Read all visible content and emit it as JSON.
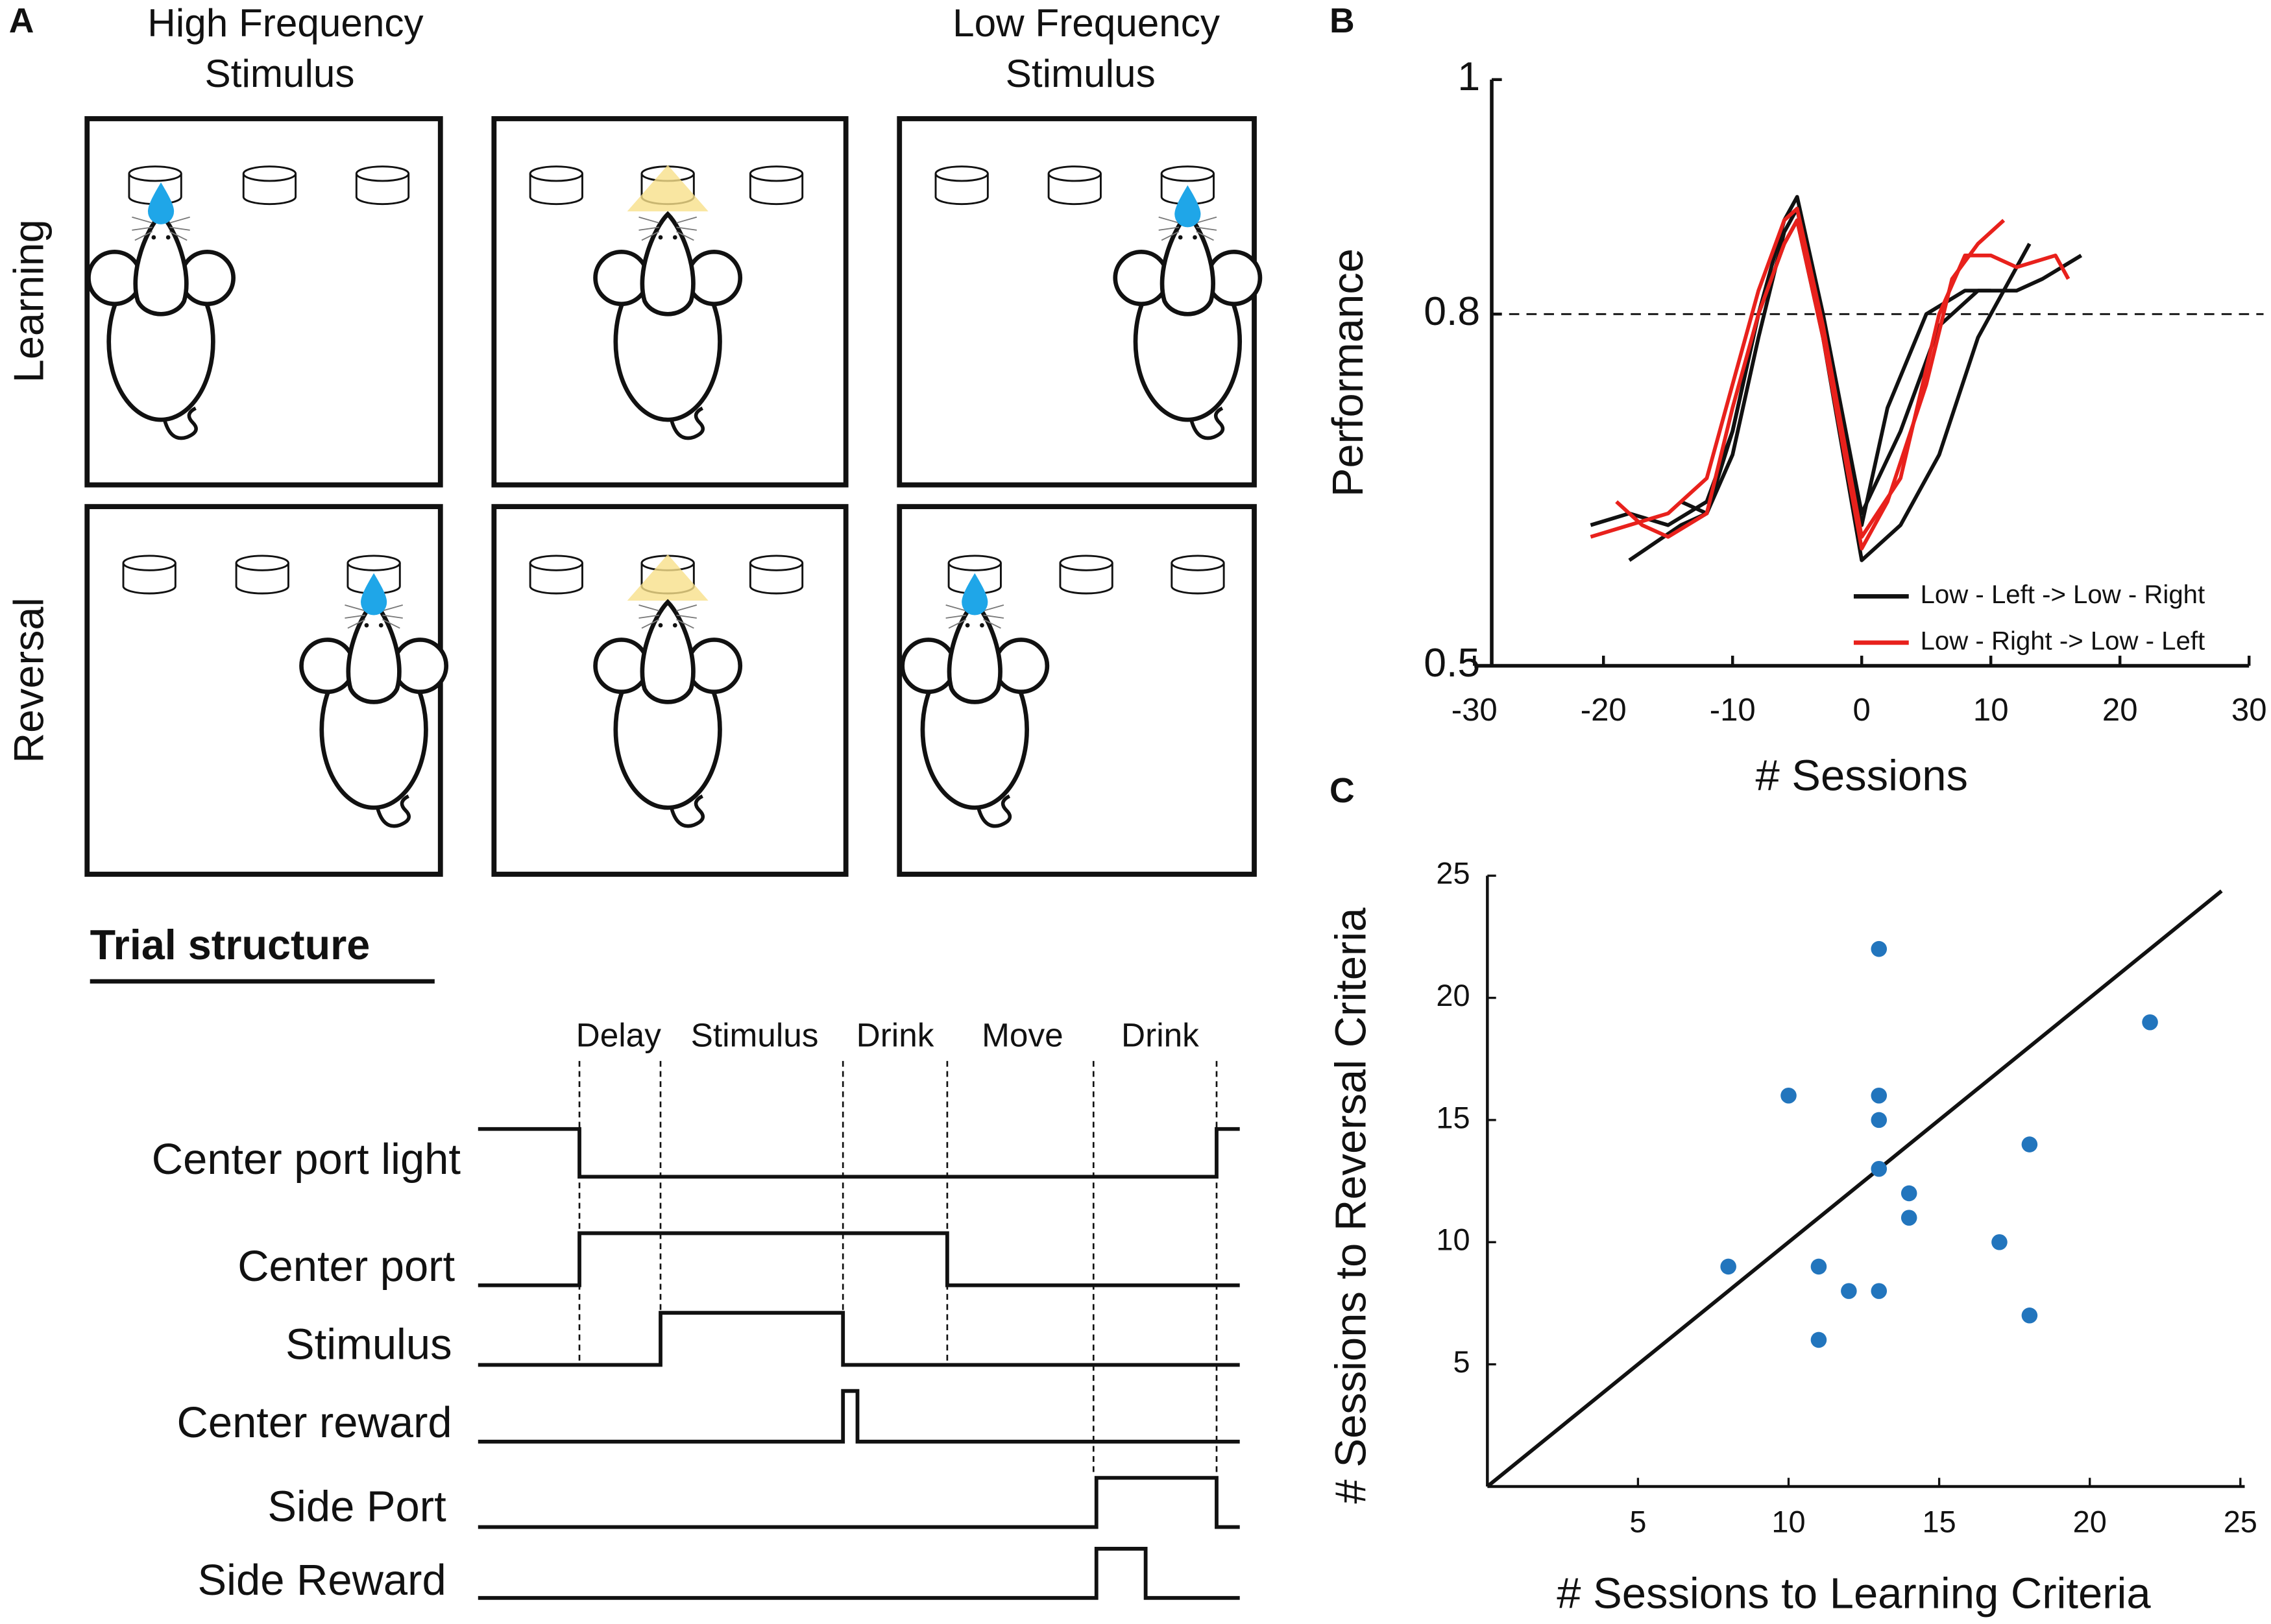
{
  "panel_labels": [
    "A",
    "B",
    "C"
  ],
  "panel_a": {
    "column_titles": [
      [
        "High Frequency",
        "Stimulus"
      ],
      [
        "Low Frequency",
        "Stimulus"
      ]
    ],
    "row_labels": [
      "Learning",
      "Reversal"
    ]
  },
  "trial_structure": {
    "title": "Trial structure",
    "epochs": [
      "Delay",
      "Stimulus",
      "Drink",
      "Move",
      "Drink"
    ],
    "signals": [
      "Center port light",
      "Center port",
      "Stimulus",
      "Center reward",
      "Side Port",
      "Side Reward"
    ]
  },
  "chart_data": [
    {
      "type": "line",
      "y_label": "Performance",
      "x_label": "# Sessions",
      "xlim": [
        -30,
        30
      ],
      "xticks": [
        -30,
        -20,
        -10,
        0,
        10,
        20,
        30
      ],
      "ylim": [
        0.5,
        1
      ],
      "yticks": [
        0.5,
        0.8,
        1
      ],
      "reference_line": 0.8,
      "legend": "lower right",
      "series": [
        {
          "name": "Low - Left -> Low - Right",
          "color": "#111111",
          "lines": [
            {
              "x": [
                -21,
                -18,
                -15,
                -12,
                -10,
                -8,
                -6,
                -5,
                -3,
                0,
                3,
                6,
                9,
                12,
                14,
                17
              ],
              "values": [
                0.62,
                0.63,
                0.62,
                0.64,
                0.7,
                0.8,
                0.88,
                0.9,
                0.8,
                0.63,
                0.7,
                0.79,
                0.82,
                0.82,
                0.83,
                0.85
              ]
            },
            {
              "x": [
                -18,
                -14,
                -12,
                -10,
                -8,
                -6,
                -5,
                -3,
                0,
                3,
                6,
                9,
                11,
                13
              ],
              "values": [
                0.59,
                0.62,
                0.63,
                0.68,
                0.78,
                0.87,
                0.89,
                0.78,
                0.59,
                0.62,
                0.68,
                0.78,
                0.82,
                0.86
              ]
            },
            {
              "x": [
                -14,
                -12,
                -10,
                -8,
                -6,
                -5,
                -3,
                0,
                2,
                5,
                8,
                10
              ],
              "values": [
                0.64,
                0.63,
                0.7,
                0.8,
                0.86,
                0.88,
                0.78,
                0.62,
                0.72,
                0.8,
                0.82,
                0.82
              ]
            }
          ]
        },
        {
          "name": "Low - Right -> Low - Left",
          "color": "#e8211c",
          "lines": [
            {
              "x": [
                -19,
                -17,
                -15,
                -12,
                -10,
                -8,
                -6,
                -5,
                -3,
                0,
                2,
                5,
                7,
                9,
                11
              ],
              "values": [
                0.64,
                0.62,
                0.61,
                0.63,
                0.72,
                0.8,
                0.86,
                0.88,
                0.78,
                0.6,
                0.64,
                0.74,
                0.83,
                0.86,
                0.88
              ]
            },
            {
              "x": [
                -21,
                -18,
                -15,
                -12,
                -10,
                -8,
                -6,
                -5,
                -3,
                0,
                3,
                6,
                8,
                10,
                12,
                15,
                16
              ],
              "values": [
                0.61,
                0.62,
                0.63,
                0.66,
                0.74,
                0.82,
                0.88,
                0.89,
                0.79,
                0.61,
                0.66,
                0.8,
                0.85,
                0.85,
                0.84,
                0.85,
                0.83
              ]
            }
          ]
        }
      ]
    },
    {
      "type": "scatter",
      "x_label": "# Sessions to Learning Criteria",
      "y_label": "# Sessions to Reversal Criteria",
      "xlim": [
        0,
        25
      ],
      "xticks": [
        5,
        10,
        15,
        20,
        25
      ],
      "ylim": [
        0,
        25
      ],
      "yticks": [
        5,
        10,
        15,
        20,
        25
      ],
      "color": "#2275bd",
      "x": [
        8,
        10,
        11,
        11,
        12,
        13,
        13,
        13,
        13,
        13,
        14,
        14,
        17,
        18,
        18,
        22
      ],
      "values": [
        9,
        16,
        9,
        6,
        8,
        22,
        16,
        15,
        13,
        8,
        12,
        11,
        10,
        14,
        7,
        19
      ]
    }
  ]
}
